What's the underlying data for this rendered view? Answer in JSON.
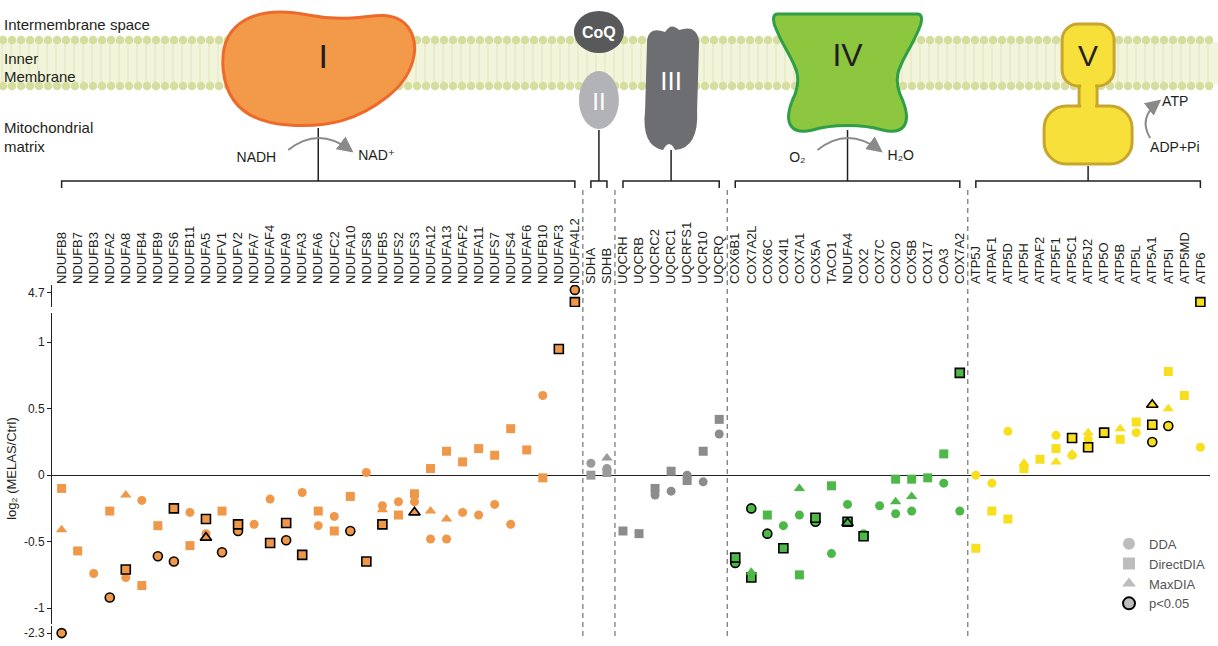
{
  "diagram": {
    "regions": [
      [
        "Intermembrane space"
      ],
      [
        "Inner",
        "Membrane"
      ],
      [
        "Mitochondrial",
        "matrix"
      ]
    ],
    "coq": "CoQ",
    "reactions": [
      {
        "complex": "I",
        "from": "NADH",
        "to": "NAD⁺"
      },
      {
        "complex": "IV",
        "from": "O₂",
        "to": "H₂O"
      },
      {
        "complex": "V",
        "from": "ADP+Pi",
        "to": "ATP"
      }
    ]
  },
  "chart_data": [
    {
      "type": "scatter",
      "y_label": "log₂ (MELAS/Ctrl)",
      "complexes": [
        {
          "label": "I",
          "color": "#F0984A",
          "categories": [
            "NDUFB8",
            "NDUFB7",
            "NDUFB3",
            "NDUFA2",
            "NDUFA8",
            "NDUFB4",
            "NDUFB9",
            "NDUFS6",
            "NDUFB11",
            "NDUFA5",
            "NDUFV1",
            "NDUFV2",
            "NDUFA7",
            "NDUFAF4",
            "NDUFA9",
            "NDUFA3",
            "NDUFA6",
            "NDUFC2",
            "NDUFA10",
            "NDUFS8",
            "NDUFB5",
            "NDUFS2",
            "NDUFS3",
            "NDUFA12",
            "NDUFA13",
            "NDUFAF2",
            "NDUFA11",
            "NDUFS7",
            "NDUFS4",
            "NDUFAF6",
            "NDUFB10",
            "NDUFAF3",
            "NDUFA4L2"
          ]
        },
        {
          "label": "II",
          "color": "#9A9A9A",
          "categories": [
            "SDHA",
            "SDHB"
          ]
        },
        {
          "label": "III",
          "color": "#8C8C8C",
          "categories": [
            "UQCRH",
            "UQCRB",
            "UQCRC2",
            "UQCRC1",
            "UQCRFS1",
            "UQCR10",
            "UQCRQ"
          ]
        },
        {
          "label": "IV",
          "color": "#4DB848",
          "categories": [
            "COX6B1",
            "COX7A2L",
            "COX6C",
            "COX4I1",
            "COX7A1",
            "COX5A",
            "TACO1",
            "NDUFA4",
            "COX2",
            "COX7C",
            "COX20",
            "COX5B",
            "COX17",
            "COA3",
            "COX7A2"
          ]
        },
        {
          "label": "V",
          "color": "#F7DF1E",
          "categories": [
            "ATP5J",
            "ATPAF1",
            "ATP5D",
            "ATP5H",
            "ATPAF2",
            "ATP5F1",
            "ATP5C1",
            "ATP5J2",
            "ATP5O",
            "ATP5B",
            "ATP5L",
            "ATP5A1",
            "ATP5I",
            "ATP5MD",
            "ATP6"
          ]
        }
      ],
      "series": [
        {
          "name": "DDA",
          "marker": "circle",
          "values": [
            null,
            null,
            -0.74,
            -0.92,
            -0.77,
            -0.19,
            -0.61,
            -0.65,
            -0.28,
            -0.44,
            -0.58,
            -0.42,
            -0.37,
            -0.18,
            -0.49,
            -0.13,
            -0.38,
            -0.31,
            -0.42,
            0.02,
            -0.23,
            -0.2,
            -0.2,
            -0.48,
            -0.48,
            -0.28,
            -0.3,
            -0.22,
            -0.37,
            null,
            0.6,
            null,
            null,
            0.09,
            0.05,
            null,
            null,
            -0.15,
            -0.12,
            0,
            -0.05,
            0.31,
            -0.66,
            -0.25,
            -0.44,
            -0.38,
            -0.3,
            -0.35,
            -0.59,
            -0.22,
            -0.44,
            -0.23,
            -0.29,
            -0.27,
            null,
            -0.06,
            -0.27,
            0,
            -0.06,
            0.33,
            null,
            null,
            0.3,
            0.15,
            0.27,
            null,
            null,
            0.32,
            0.25,
            0.37,
            null,
            0.21
          ],
          "significant": [
            "NDUFA2",
            "NDUFB9",
            "NDUFS6",
            "NDUFV1",
            "NDUFV2",
            "NDUFA9",
            "NDUFA10",
            "COX6B1",
            "COX7A2L",
            "COX6C",
            "COX5A",
            "ATP5A1",
            "ATP5I"
          ]
        },
        {
          "name": "DirectDIA",
          "marker": "square",
          "values": [
            -0.1,
            -0.57,
            null,
            -0.27,
            -0.71,
            -0.83,
            -0.38,
            -0.25,
            -0.53,
            -0.33,
            -0.27,
            -0.37,
            null,
            -0.51,
            -0.36,
            -0.6,
            -0.27,
            -0.42,
            -0.16,
            -0.65,
            -0.37,
            -0.3,
            -0.14,
            0.05,
            0.18,
            0.1,
            0.2,
            0.15,
            0.35,
            0.19,
            -0.02,
            0.95,
            null,
            0,
            0.02,
            -0.42,
            -0.44,
            -0.1,
            0.03,
            -0.04,
            0.18,
            0.42,
            -0.62,
            -0.77,
            -0.3,
            -0.55,
            -0.75,
            -0.32,
            -0.08,
            -0.35,
            -0.46,
            null,
            -0.03,
            -0.03,
            -0.02,
            0.16,
            0.77,
            -0.55,
            -0.27,
            -0.33,
            0.05,
            0.12,
            0.2,
            0.28,
            0.21,
            0.32,
            0.27,
            0.4,
            0.38,
            0.78,
            0.6,
            null
          ],
          "significant": [
            "NDUFA8",
            "NDUFS6",
            "NDUFA5",
            "NDUFV2",
            "NDUFAF4",
            "NDUFA9",
            "NDUFA3",
            "NDUFS8",
            "NDUFB5",
            "NDUFAF3",
            "COX6B1",
            "COX7A2L",
            "COX4I1",
            "COX5A",
            "NDUFA4",
            "COX2",
            "COX7A2",
            "ATP5C1",
            "ATP5J2",
            "ATP5O",
            "ATP5A1"
          ]
        },
        {
          "name": "MaxDIA",
          "marker": "triangle",
          "values": [
            -0.41,
            null,
            null,
            null,
            -0.15,
            null,
            null,
            null,
            null,
            -0.47,
            null,
            null,
            null,
            null,
            null,
            null,
            null,
            null,
            null,
            null,
            -0.26,
            null,
            -0.28,
            -0.27,
            -0.33,
            null,
            null,
            null,
            null,
            null,
            null,
            null,
            null,
            null,
            0.13,
            null,
            null,
            null,
            null,
            null,
            null,
            null,
            null,
            -0.73,
            null,
            null,
            -0.1,
            null,
            null,
            -0.36,
            null,
            null,
            -0.2,
            -0.16,
            null,
            null,
            null,
            null,
            null,
            null,
            0.09,
            null,
            0.1,
            0.16,
            0.32,
            null,
            0.35,
            null,
            0.53,
            0.5,
            null,
            null
          ],
          "significant": [
            "NDUFA5",
            "NDUFS3",
            "NDUFA4",
            "ATP5A1"
          ]
        }
      ],
      "significant_label": "p<0.05",
      "legend": "bottom right",
      "ylim": [
        -1.12,
        1.22
      ],
      "yticks": [
        -1,
        -0.5,
        0,
        0.5,
        1
      ],
      "grid": false
    },
    {
      "type": "scatter",
      "series": [
        {
          "name": "DDA",
          "marker": "circle",
          "x": [
            "NDUFA4L2"
          ],
          "values": [
            4.75
          ],
          "significant": [
            "NDUFA4L2"
          ]
        },
        {
          "name": "DirectDIA",
          "marker": "square",
          "x": [
            "NDUFA4L2",
            "ATP6"
          ],
          "values": [
            4.5,
            4.5
          ],
          "significant": [
            "NDUFA4L2",
            "ATP6"
          ]
        }
      ],
      "ylim": [
        4.4,
        4.85
      ],
      "yticks": [
        4.7
      ],
      "tick_labels": "y"
    },
    {
      "type": "scatter",
      "series": [
        {
          "name": "DDA",
          "marker": "circle",
          "x": [
            "NDUFB8"
          ],
          "values": [
            -2.3
          ],
          "significant": [
            "NDUFB8"
          ]
        }
      ],
      "ylim": [
        -2.38,
        -2.22
      ],
      "yticks": [
        -2.3
      ],
      "tick_labels": "y"
    }
  ]
}
